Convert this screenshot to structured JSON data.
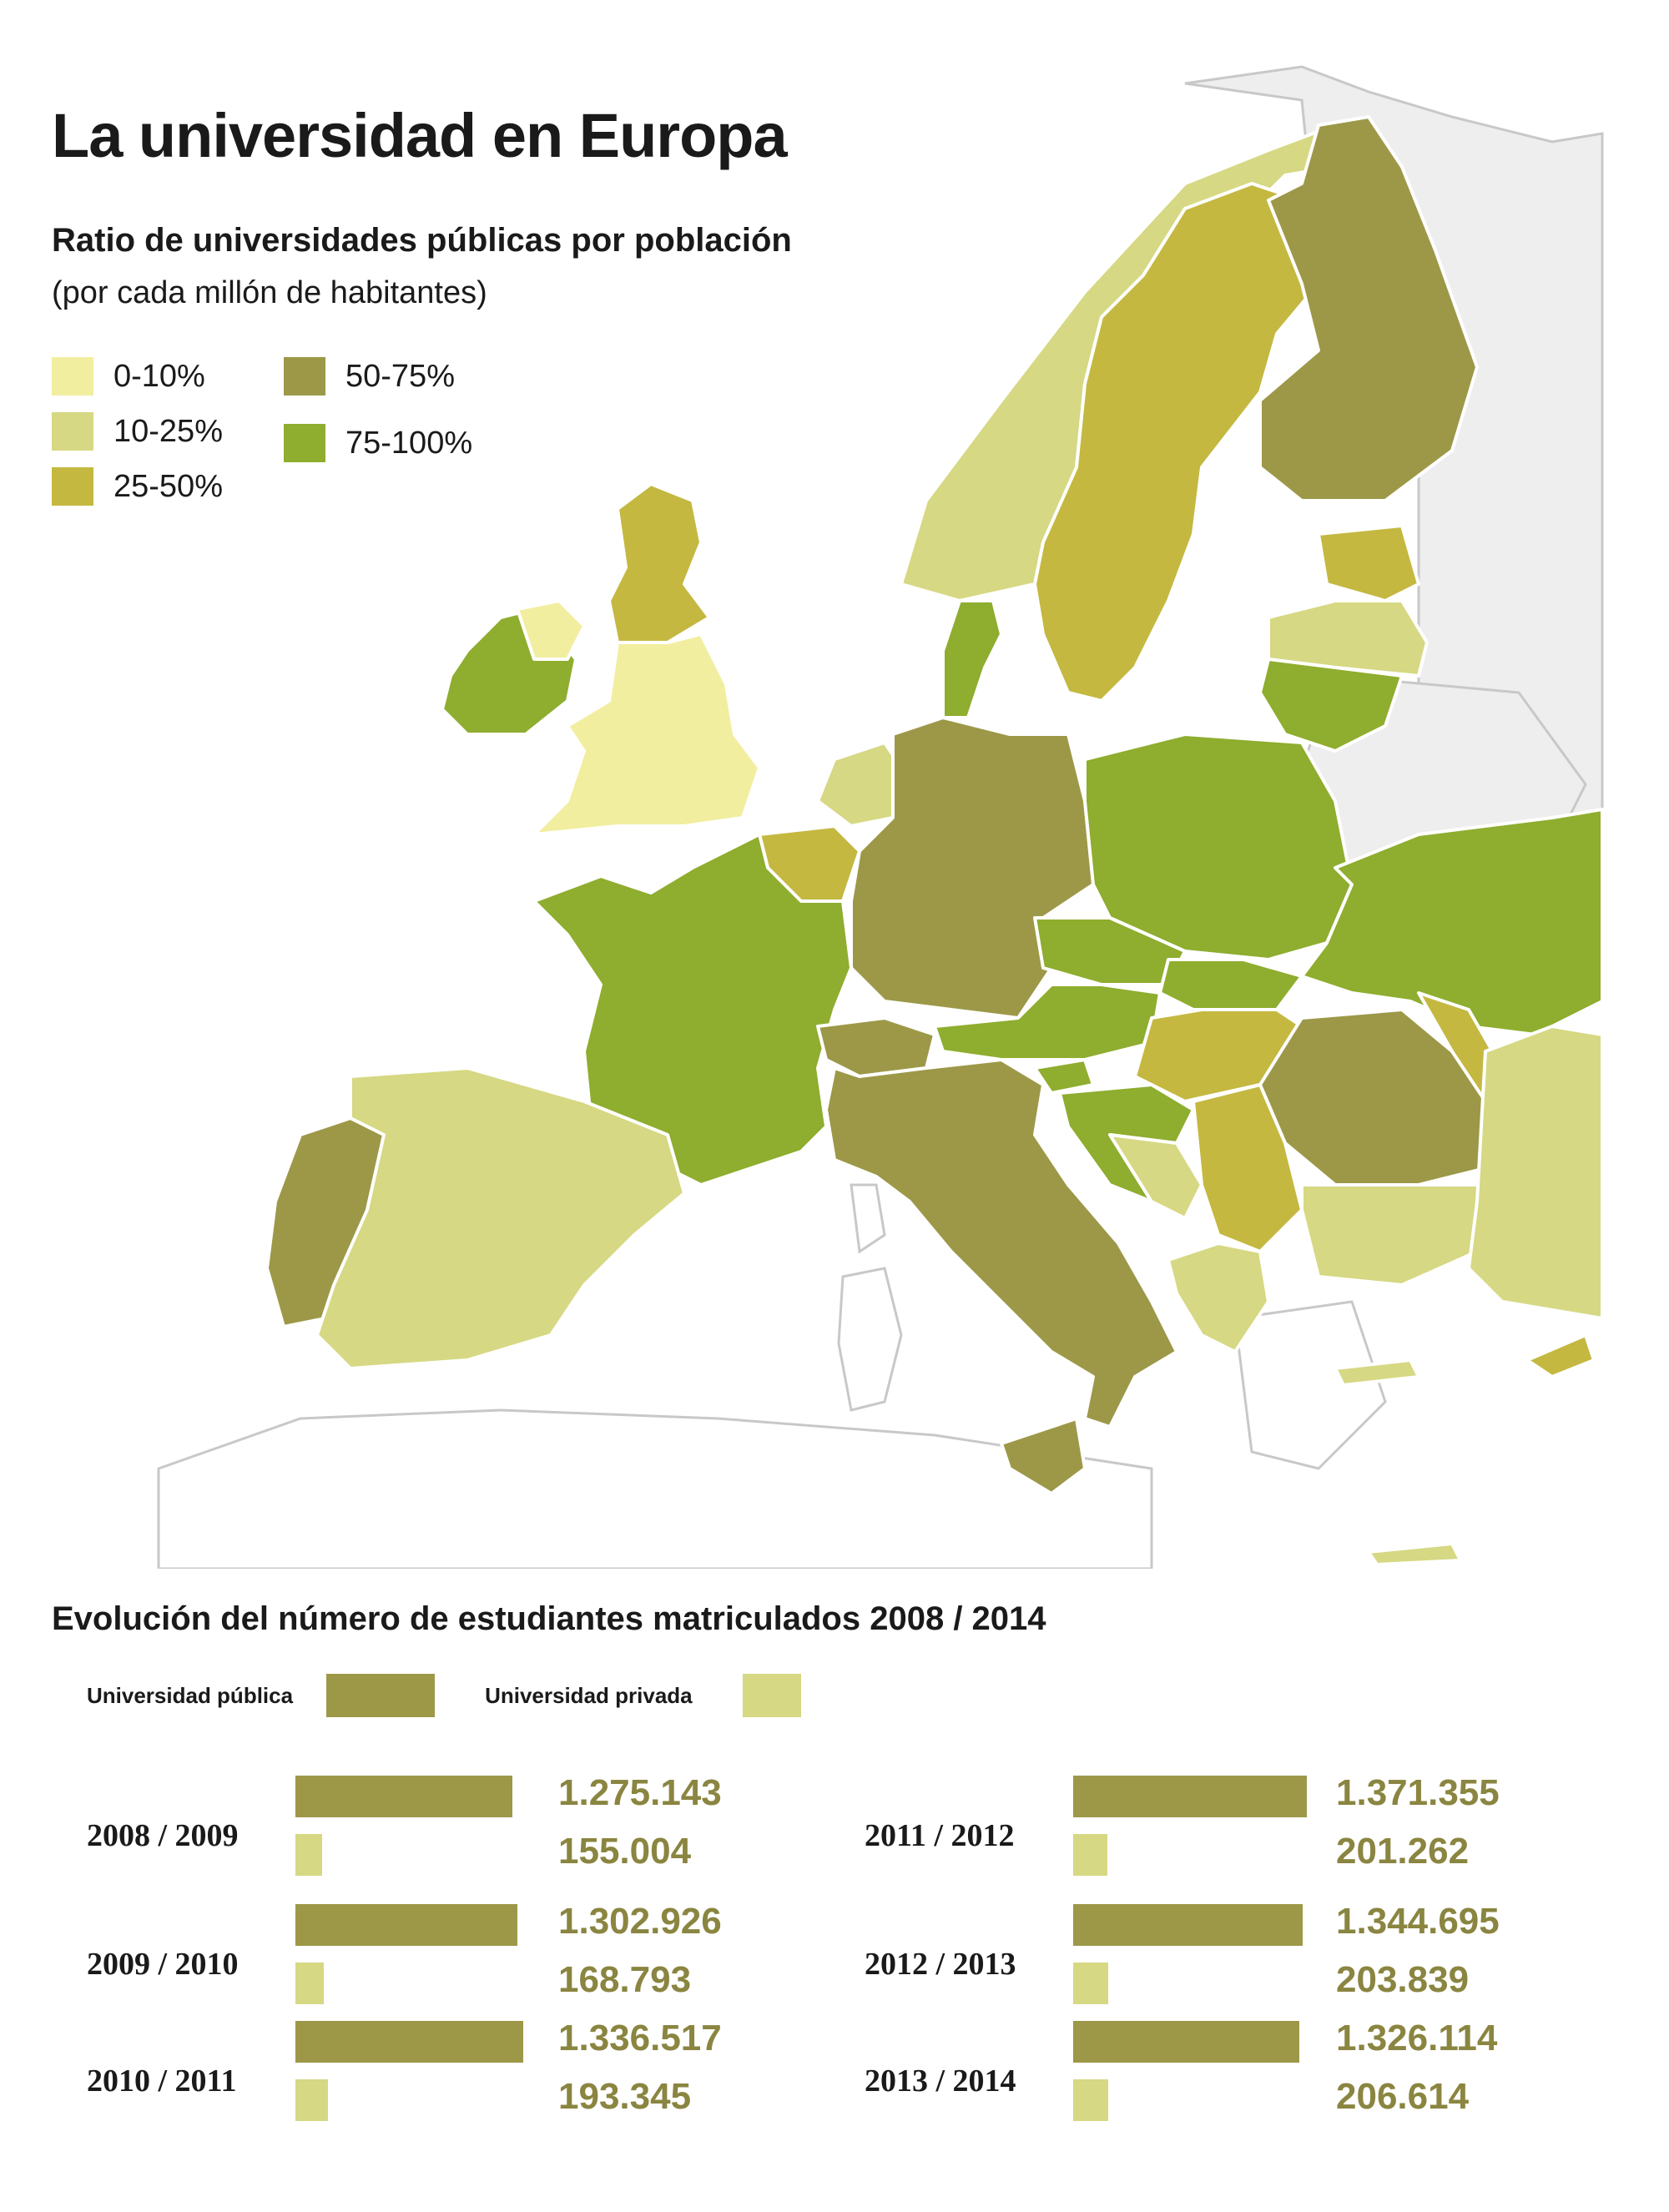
{
  "header": {
    "title": "La universidad en Europa",
    "subtitle": "Ratio de universidades públicas por población",
    "subtitle2": "(por cada millón de habitantes)"
  },
  "colors": {
    "c0": "#f2eea0",
    "c1": "#d6d883",
    "c2": "#c4b841",
    "c3": "#9d9848",
    "c4": "#8fad2e",
    "nodata": "#eeeeee",
    "border": "#ffffff",
    "value_text": "#8a8540"
  },
  "map_legend": [
    {
      "label": "0-10%",
      "color": "#f2eea0"
    },
    {
      "label": "10-25%",
      "color": "#d6d883"
    },
    {
      "label": "25-50%",
      "color": "#c4b841"
    },
    {
      "label": "50-75%",
      "color": "#9d9848"
    },
    {
      "label": "75-100%",
      "color": "#8fad2e"
    }
  ],
  "map_regions": [
    {
      "name": "Reino Unido",
      "category": "0-10%"
    },
    {
      "name": "Irlanda del Norte",
      "category": "0-10%"
    },
    {
      "name": "Escocia",
      "category": "25-50%"
    },
    {
      "name": "Irlanda",
      "category": "75-100%"
    },
    {
      "name": "Noruega",
      "category": "10-25%"
    },
    {
      "name": "Suecia",
      "category": "25-50%"
    },
    {
      "name": "Finlandia",
      "category": "50-75%"
    },
    {
      "name": "Estonia",
      "category": "25-50%"
    },
    {
      "name": "Letonia",
      "category": "10-25%"
    },
    {
      "name": "Lituania",
      "category": "75-100%"
    },
    {
      "name": "Dinamarca",
      "category": "75-100%"
    },
    {
      "name": "Países Bajos",
      "category": "10-25%"
    },
    {
      "name": "Bélgica",
      "category": "25-50%"
    },
    {
      "name": "Alemania",
      "category": "50-75%"
    },
    {
      "name": "Polonia",
      "category": "75-100%"
    },
    {
      "name": "Ucrania",
      "category": "75-100%"
    },
    {
      "name": "Francia",
      "category": "75-100%"
    },
    {
      "name": "República Checa",
      "category": "75-100%"
    },
    {
      "name": "Eslovaquia",
      "category": "75-100%"
    },
    {
      "name": "Austria",
      "category": "75-100%"
    },
    {
      "name": "Suiza",
      "category": "50-75%"
    },
    {
      "name": "Hungría",
      "category": "25-50%"
    },
    {
      "name": "Rumanía",
      "category": "50-75%"
    },
    {
      "name": "Moldavia",
      "category": "25-50%"
    },
    {
      "name": "Eslovenia",
      "category": "75-100%"
    },
    {
      "name": "Croacia",
      "category": "75-100%"
    },
    {
      "name": "Bosnia",
      "category": "10-25%"
    },
    {
      "name": "Serbia",
      "category": "25-50%"
    },
    {
      "name": "Bulgaria",
      "category": "10-25%"
    },
    {
      "name": "Grecia",
      "category": "10-25%"
    },
    {
      "name": "Turquía",
      "category": "10-25%"
    },
    {
      "name": "Italia",
      "category": "50-75%"
    },
    {
      "name": "Portugal",
      "category": "50-75%"
    },
    {
      "name": "España",
      "category": "10-25%"
    },
    {
      "name": "Chipre",
      "category": "25-50%"
    },
    {
      "name": "Malta",
      "category": "50-75%"
    },
    {
      "name": "Creta",
      "category": "10-25%"
    }
  ],
  "students_section": {
    "title": "Evolución del número de estudiantes matriculados 2008 / 2014",
    "public_label": "Universidad pública",
    "private_label": "Universidad privada"
  },
  "chart_data": {
    "type": "bar",
    "title": "Evolución del número de estudiantes matriculados 2008 / 2014",
    "categories": [
      "2008 / 2009",
      "2009 / 2010",
      "2010 / 2011",
      "2011 / 2012",
      "2012 / 2013",
      "2013 / 2014"
    ],
    "series": [
      {
        "name": "Universidad pública",
        "color": "#9d9848",
        "values": [
          1275143,
          1302926,
          1336517,
          1371355,
          1344695,
          1326114
        ],
        "labels": [
          "1.275.143",
          "1.302.926",
          "1.336.517",
          "1.371.355",
          "1.344.695",
          "1.326.114"
        ]
      },
      {
        "name": "Universidad privada",
        "color": "#d6d883",
        "values": [
          155004,
          168793,
          193345,
          201262,
          203839,
          206614
        ],
        "labels": [
          "155.004",
          "168.793",
          "193.345",
          "201.262",
          "203.839",
          "206.614"
        ]
      }
    ]
  }
}
